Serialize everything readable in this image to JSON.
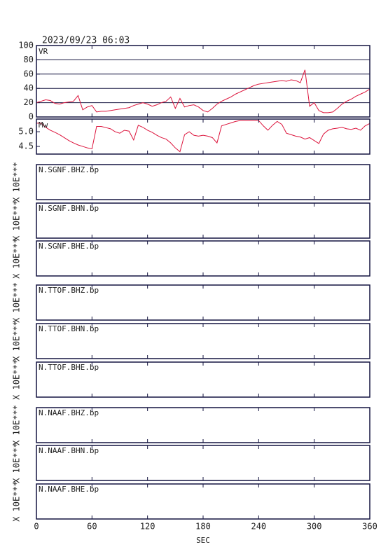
{
  "chart_data": {
    "type": "line",
    "title": "2023/09/23 06:03",
    "x_label": "SEC",
    "color": "#dc143c",
    "xlim": [
      0,
      360
    ],
    "xticks": [
      0,
      60,
      120,
      180,
      240,
      300,
      360
    ],
    "x": [
      0,
      5,
      10,
      15,
      20,
      25,
      30,
      35,
      40,
      45,
      50,
      55,
      60,
      65,
      70,
      75,
      80,
      85,
      90,
      95,
      100,
      105,
      110,
      115,
      120,
      125,
      130,
      135,
      140,
      145,
      150,
      155,
      160,
      165,
      170,
      175,
      180,
      185,
      190,
      195,
      200,
      205,
      210,
      215,
      220,
      225,
      230,
      235,
      240,
      245,
      250,
      255,
      260,
      265,
      270,
      275,
      280,
      285,
      290,
      295,
      300,
      305,
      310,
      315,
      320,
      325,
      330,
      335,
      340,
      345,
      350,
      355,
      360
    ],
    "panels": [
      {
        "name": "VR",
        "ylim": [
          0,
          100
        ],
        "yticks": [
          0,
          20,
          40,
          60,
          80,
          100
        ],
        "grid": true,
        "values": [
          20,
          22,
          24,
          23,
          19,
          18,
          20,
          21,
          22,
          30,
          10,
          14,
          16,
          7,
          8,
          8,
          9,
          10,
          11,
          12,
          13,
          16,
          18,
          20,
          18,
          15,
          17,
          20,
          22,
          28,
          12,
          26,
          14,
          16,
          17,
          14,
          9,
          7,
          12,
          18,
          22,
          25,
          28,
          32,
          35,
          38,
          41,
          44,
          46,
          47,
          48,
          49,
          50,
          51,
          50,
          52,
          51,
          48,
          66,
          15,
          20,
          9,
          6,
          6,
          7,
          12,
          18,
          22,
          25,
          29,
          32,
          35,
          39
        ]
      },
      {
        "name": "Mw",
        "ylim": [
          4.24,
          5.43
        ],
        "yticks": [
          4.5,
          {
            "value": 5,
            "label": "5.0"
          }
        ],
        "grid": false,
        "values": [
          5.29,
          5.29,
          5.15,
          5.05,
          4.98,
          4.9,
          4.8,
          4.7,
          4.62,
          4.55,
          4.5,
          4.45,
          4.42,
          5.18,
          5.18,
          5.14,
          5.1,
          5.0,
          4.95,
          5.05,
          5.02,
          4.72,
          5.22,
          5.15,
          5.05,
          4.98,
          4.88,
          4.8,
          4.75,
          4.62,
          4.45,
          4.32,
          4.9,
          5.0,
          4.88,
          4.85,
          4.88,
          4.85,
          4.8,
          4.62,
          5.2,
          5.25,
          5.3,
          5.35,
          5.38,
          5.38,
          5.38,
          5.38,
          5.38,
          5.2,
          5.05,
          5.22,
          5.35,
          5.25,
          4.95,
          4.9,
          4.85,
          4.82,
          4.75,
          4.8,
          4.7,
          4.6,
          4.92,
          5.05,
          5.1,
          5.12,
          5.15,
          5.1,
          5.08,
          5.12,
          5.05,
          5.2,
          5.28
        ]
      }
    ],
    "traces": [
      {
        "name": "N.SGNF.BHZ.bp",
        "scale_label": "X 10E***"
      },
      {
        "name": "N.SGNF.BHN.bp",
        "scale_label": "X 10E***"
      },
      {
        "name": "N.SGNF.BHE.bp",
        "scale_label": "X 10E***"
      },
      {
        "name": "N.TTOF.BHZ.bp",
        "scale_label": "X 10E***"
      },
      {
        "name": "N.TTOF.BHN.bp",
        "scale_label": "X 10E***"
      },
      {
        "name": "N.TTOF.BHE.bp",
        "scale_label": "X 10E***"
      },
      {
        "name": "N.NAAF.BHZ.bp",
        "scale_label": "X 10E***"
      },
      {
        "name": "N.NAAF.BHN.bp",
        "scale_label": "X 10E***"
      },
      {
        "name": "N.NAAF.BHE.bp",
        "scale_label": "X 10E***"
      }
    ]
  }
}
